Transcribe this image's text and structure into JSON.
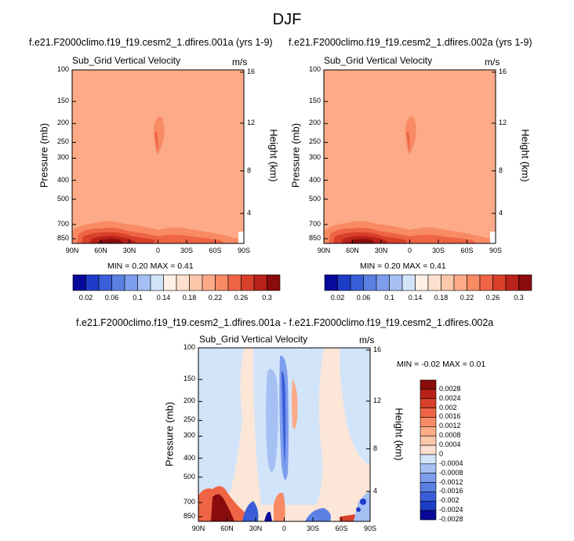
{
  "figure": {
    "title": "DJF",
    "panels": [
      {
        "case_title": "f.e21.F2000climo.f19_f19.cesm2_1.dfires.001a (yrs 1-9)",
        "variable": "Sub_Grid Vertical Velocity",
        "units": "m/s",
        "minmax": "MIN =  0.20  MAX =  0.41"
      },
      {
        "case_title": "f.e21.F2000climo.f19_f19.cesm2_1.dfires.002a (yrs 1-9)",
        "variable": "Sub_Grid Vertical Velocity",
        "units": "m/s",
        "minmax": "MIN =  0.20  MAX =  0.41"
      },
      {
        "case_title": "f.e21.F2000climo.f19_f19.cesm2_1.dfires.001a - f.e21.F2000climo.f19_f19.cesm2_1.dfires.002a",
        "variable": "Sub_Grid Vertical Velocity",
        "units": "m/s",
        "minmax": "MIN = -0.02  MAX =  0.01"
      }
    ],
    "y_axis_label": "Pressure (mb)",
    "y2_axis_label": "Height (km)"
  },
  "colors": {
    "background_field": "#fcaa87",
    "blue_scale": [
      "#08089a",
      "#1d3cc8",
      "#3a5ed8",
      "#5a80e4",
      "#7d9ded",
      "#a6c0f4",
      "#d1e4fa"
    ],
    "red_scale": [
      "#fde0cd",
      "#fcc8ab",
      "#fcaa87",
      "#f88a64",
      "#ee6445",
      "#d8402a",
      "#b82218",
      "#8a0c0c"
    ]
  },
  "chart_data": [
    {
      "type": "heatmap",
      "title": "Sub_Grid Vertical Velocity",
      "units": "m/s",
      "x_ticks": [
        "90N",
        "60N",
        "30N",
        "0",
        "30S",
        "60S",
        "90S"
      ],
      "y_ticks": [
        "100",
        "150",
        "200",
        "250",
        "300",
        "400",
        "500",
        "700",
        "850"
      ],
      "y2_ticks": [
        "16",
        "12",
        "8",
        "4"
      ],
      "xlabel": "",
      "ylabel": "Pressure (mb)",
      "y2label": "Height (km)",
      "min": 0.2,
      "max": 0.41,
      "colorbar_labels": [
        "0.02",
        "0.06",
        "0.1",
        "0.14",
        "0.18",
        "0.22",
        "0.26",
        "0.3"
      ]
    },
    {
      "type": "heatmap",
      "title": "Sub_Grid Vertical Velocity",
      "units": "m/s",
      "x_ticks": [
        "90N",
        "60N",
        "30N",
        "0",
        "30S",
        "60S",
        "90S"
      ],
      "y_ticks": [
        "100",
        "150",
        "200",
        "250",
        "300",
        "400",
        "500",
        "700",
        "850"
      ],
      "y2_ticks": [
        "16",
        "12",
        "8",
        "4"
      ],
      "xlabel": "",
      "ylabel": "Pressure (mb)",
      "y2label": "Height (km)",
      "min": 0.2,
      "max": 0.41,
      "colorbar_labels": [
        "0.02",
        "0.06",
        "0.1",
        "0.14",
        "0.18",
        "0.22",
        "0.26",
        "0.3"
      ]
    },
    {
      "type": "heatmap",
      "title": "Sub_Grid Vertical Velocity",
      "units": "m/s",
      "x_ticks": [
        "90N",
        "60N",
        "30N",
        "0",
        "30S",
        "60S",
        "90S"
      ],
      "y_ticks": [
        "100",
        "150",
        "200",
        "250",
        "300",
        "400",
        "500",
        "700",
        "850"
      ],
      "y2_ticks": [
        "16",
        "12",
        "8",
        "4"
      ],
      "xlabel": "",
      "ylabel": "Pressure (mb)",
      "y2label": "Height (km)",
      "min": -0.02,
      "max": 0.01,
      "colorbar_labels": [
        "0.0028",
        "0.0024",
        "0.002",
        "0.0016",
        "0.0012",
        "0.0008",
        "0.0004",
        "0",
        "-0.0004",
        "-0.0008",
        "-0.0012",
        "-0.0016",
        "-0.002",
        "-0.0024",
        "-0.0028"
      ]
    }
  ]
}
